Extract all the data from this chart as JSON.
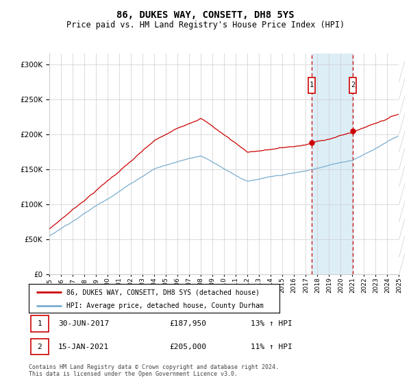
{
  "title": "86, DUKES WAY, CONSETT, DH8 5YS",
  "subtitle": "Price paid vs. HM Land Registry's House Price Index (HPI)",
  "legend_line1": "86, DUKES WAY, CONSETT, DH8 5YS (detached house)",
  "legend_line2": "HPI: Average price, detached house, County Durham",
  "annotation1_label": "1",
  "annotation1_date": "30-JUN-2017",
  "annotation1_price": "£187,950",
  "annotation1_hpi": "13% ↑ HPI",
  "annotation1_year": 2017.5,
  "annotation1_value": 187950,
  "annotation2_label": "2",
  "annotation2_date": "15-JAN-2021",
  "annotation2_price": "£205,000",
  "annotation2_hpi": "11% ↑ HPI",
  "annotation2_year": 2021.04,
  "annotation2_value": 205000,
  "ytick_values": [
    0,
    50000,
    100000,
    150000,
    200000,
    250000,
    300000
  ],
  "ytick_labels": [
    "£0",
    "£50K",
    "£100K",
    "£150K",
    "£200K",
    "£250K",
    "£300K"
  ],
  "ylim": [
    0,
    315000
  ],
  "xlim_start": 1995.0,
  "xlim_end": 2025.5,
  "footer": "Contains HM Land Registry data © Crown copyright and database right 2024.\nThis data is licensed under the Open Government Licence v3.0.",
  "red_color": "#cc0000",
  "blue_color": "#7aadcf",
  "shaded_region_color": "#ddeef7",
  "grid_color": "#cccccc",
  "title_fontsize": 10,
  "subtitle_fontsize": 8.5
}
